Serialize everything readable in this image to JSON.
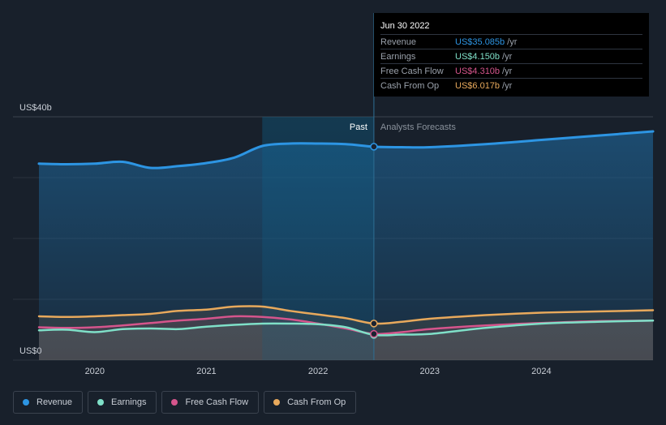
{
  "tooltip": {
    "date": "Jun 30 2022",
    "rows": [
      {
        "label": "Revenue",
        "value": "US$35.085b",
        "unit": "/yr",
        "color": "#2d95e3"
      },
      {
        "label": "Earnings",
        "value": "US$4.150b",
        "unit": "/yr",
        "color": "#7fe0c8"
      },
      {
        "label": "Free Cash Flow",
        "value": "US$4.310b",
        "unit": "/yr",
        "color": "#d5558c"
      },
      {
        "label": "Cash From Op",
        "value": "US$6.017b",
        "unit": "/yr",
        "color": "#e8a95c"
      }
    ]
  },
  "legend": [
    {
      "label": "Revenue",
      "color": "#2d95e3"
    },
    {
      "label": "Earnings",
      "color": "#7fe0c8"
    },
    {
      "label": "Free Cash Flow",
      "color": "#d5558c"
    },
    {
      "label": "Cash From Op",
      "color": "#e8a95c"
    }
  ],
  "chart_data": {
    "type": "line",
    "ylabel_top": "US$40b",
    "ylabel_bottom": "US$0",
    "ylim": [
      0,
      40
    ],
    "xlim": [
      2019.5,
      2025.0
    ],
    "x_ticks": [
      2020,
      2021,
      2022,
      2023,
      2024
    ],
    "past_label": "Past",
    "forecast_label": "Analysts Forecasts",
    "divider_x": 2022.5,
    "past_shade_start": 2021.5,
    "grid": true,
    "series": [
      {
        "name": "Revenue",
        "color": "#2d95e3",
        "x": [
          2019.5,
          2019.75,
          2020.0,
          2020.25,
          2020.5,
          2020.75,
          2021.0,
          2021.25,
          2021.5,
          2021.75,
          2022.0,
          2022.25,
          2022.5,
          2022.75,
          2023.0,
          2023.5,
          2024.0,
          2024.5,
          2025.0
        ],
        "y": [
          32.3,
          32.2,
          32.3,
          32.6,
          31.6,
          31.9,
          32.4,
          33.3,
          35.2,
          35.6,
          35.6,
          35.5,
          35.085,
          35.0,
          35.0,
          35.5,
          36.2,
          36.9,
          37.6
        ]
      },
      {
        "name": "Earnings",
        "color": "#7fe0c8",
        "x": [
          2019.5,
          2019.75,
          2020.0,
          2020.25,
          2020.5,
          2020.75,
          2021.0,
          2021.25,
          2021.5,
          2021.75,
          2022.0,
          2022.25,
          2022.5,
          2022.75,
          2023.0,
          2023.5,
          2024.0,
          2024.5,
          2025.0
        ],
        "y": [
          4.9,
          5.0,
          4.6,
          5.1,
          5.2,
          5.1,
          5.5,
          5.8,
          6.0,
          6.0,
          5.9,
          5.4,
          4.15,
          4.2,
          4.3,
          5.3,
          6.0,
          6.3,
          6.5
        ]
      },
      {
        "name": "Free Cash Flow",
        "color": "#d5558c",
        "x": [
          2019.5,
          2019.75,
          2020.0,
          2020.25,
          2020.5,
          2020.75,
          2021.0,
          2021.25,
          2021.5,
          2021.75,
          2022.0,
          2022.25,
          2022.5,
          2022.75,
          2023.0,
          2023.5,
          2024.0,
          2024.5,
          2025.0
        ],
        "y": [
          5.4,
          5.3,
          5.4,
          5.7,
          6.1,
          6.5,
          6.8,
          7.2,
          7.1,
          6.7,
          6.0,
          5.2,
          4.31,
          4.6,
          5.1,
          5.7,
          6.1,
          6.4,
          6.5
        ]
      },
      {
        "name": "Cash From Op",
        "color": "#e8a95c",
        "x": [
          2019.5,
          2019.75,
          2020.0,
          2020.25,
          2020.5,
          2020.75,
          2021.0,
          2021.25,
          2021.5,
          2021.75,
          2022.0,
          2022.25,
          2022.5,
          2022.75,
          2023.0,
          2023.5,
          2024.0,
          2024.5,
          2025.0
        ],
        "y": [
          7.2,
          7.1,
          7.2,
          7.4,
          7.6,
          8.1,
          8.3,
          8.8,
          8.8,
          8.1,
          7.5,
          6.9,
          6.017,
          6.3,
          6.8,
          7.4,
          7.8,
          8.0,
          8.2
        ]
      }
    ]
  }
}
